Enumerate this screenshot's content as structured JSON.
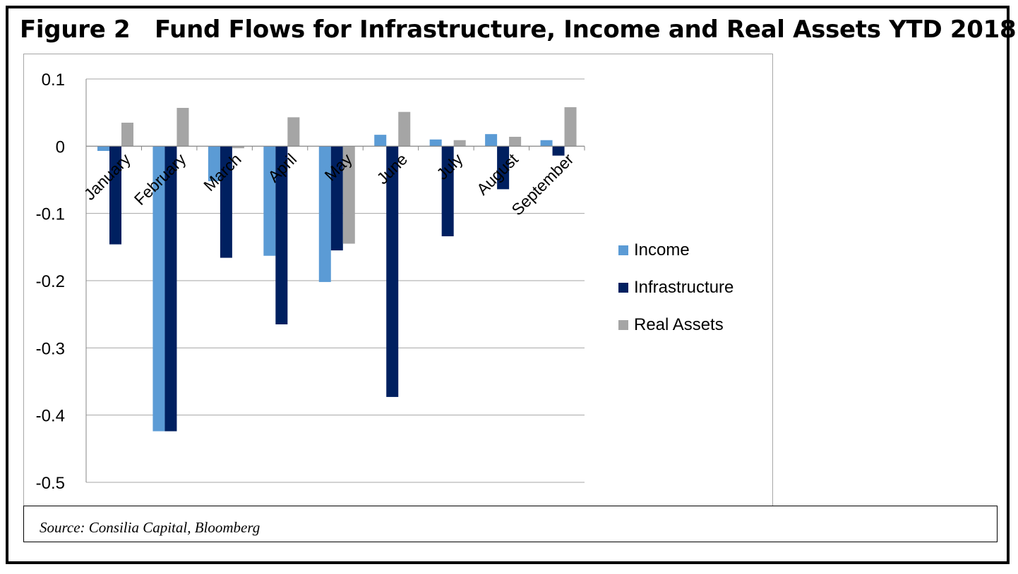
{
  "figure": {
    "title": "Figure 2   Fund Flows for Infrastructure, Income and Real Assets YTD 2018",
    "source": "Source: Consilia Capital, Bloomberg"
  },
  "colors": {
    "income": "#5b9bd5",
    "infrastructure": "#002060",
    "real_assets": "#a5a5a5",
    "gridline": "#a6a6a6",
    "axis": "#868686"
  },
  "chart_data": {
    "type": "bar",
    "categories": [
      "January",
      "February",
      "March",
      "April",
      "May",
      "June",
      "July",
      "August",
      "September"
    ],
    "series": [
      {
        "name": "Income",
        "color": "#5b9bd5",
        "values": [
          -0.007,
          -0.424,
          -0.052,
          -0.163,
          -0.202,
          0.017,
          0.01,
          0.018,
          0.009
        ]
      },
      {
        "name": "Infrastructure",
        "color": "#002060",
        "values": [
          -0.146,
          -0.424,
          -0.166,
          -0.265,
          -0.155,
          -0.373,
          -0.134,
          -0.064,
          -0.014
        ]
      },
      {
        "name": "Real Assets",
        "color": "#a5a5a5",
        "values": [
          0.035,
          0.057,
          -0.003,
          0.043,
          -0.145,
          0.051,
          0.009,
          0.014,
          0.058
        ]
      }
    ],
    "yticks": [
      "0.1",
      "0",
      "-0.1",
      "-0.2",
      "-0.3",
      "-0.4",
      "-0.5"
    ],
    "ylim": [
      -0.5,
      0.1
    ],
    "grid": true,
    "legend_position": "right",
    "title": "",
    "xlabel": "",
    "ylabel": ""
  }
}
